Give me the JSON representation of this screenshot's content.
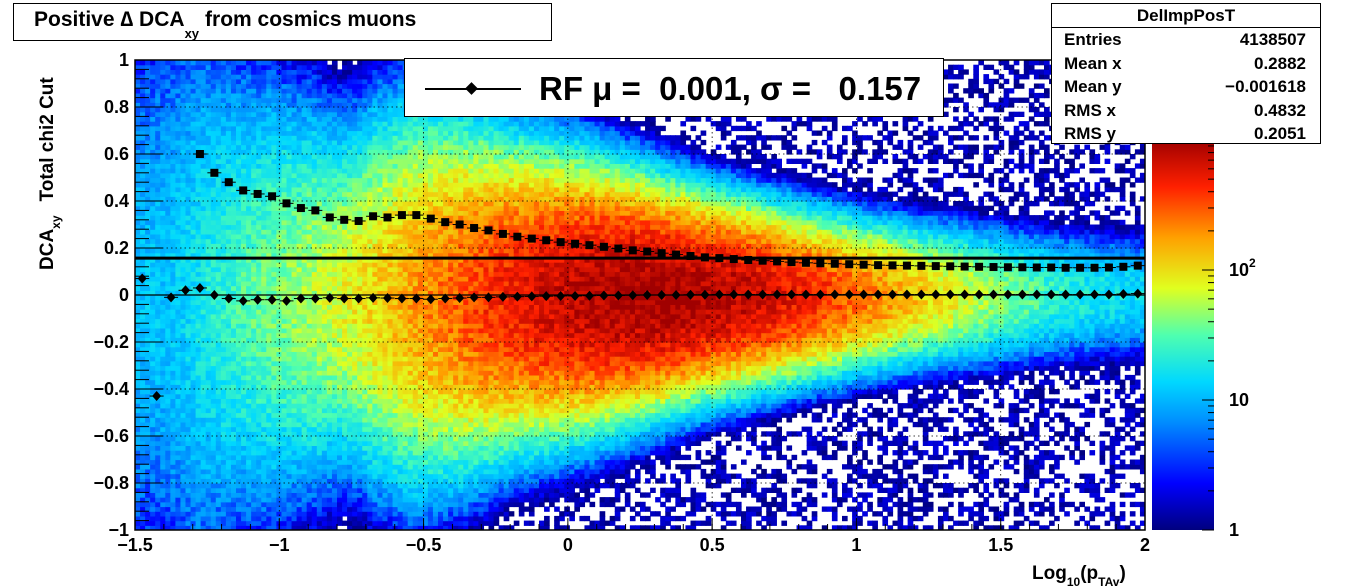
{
  "title": {
    "prefix": "Positive ∆ DCA",
    "sub": "xy",
    "suffix": "from cosmics muons"
  },
  "stats_box": {
    "name": "DelImpPosT",
    "rows": [
      {
        "key": "Entries",
        "value": "4138507"
      },
      {
        "key": "Mean x",
        "value": "0.2882"
      },
      {
        "key": "Mean y",
        "value": "−0.001618"
      },
      {
        "key": "RMS x",
        "value": "0.4832"
      },
      {
        "key": "RMS y",
        "value": "0.2051"
      }
    ]
  },
  "legend": {
    "text": "RF μ =  0.001, σ =   0.157"
  },
  "colors": {
    "palette": [
      "#00007f",
      "#0000ff",
      "#0090ff",
      "#00d8ff",
      "#4fffaf",
      "#e0ff1f",
      "#ffa000",
      "#ff2000",
      "#a00000"
    ]
  },
  "chart_data": {
    "type": "heatmap",
    "xlabel": "Log10(pTAv)",
    "xlabel_parts": {
      "base": "Log",
      "sub1": "10",
      "mid": "(p",
      "sub2": "TAv",
      "end": ")"
    },
    "ylabel": "DCAxy  Total chi2 Cut",
    "ylabel_parts": {
      "base": "DCA",
      "sub": "xy",
      "rest": "Total chi2 Cut"
    },
    "xlim": [
      -1.5,
      2
    ],
    "ylim": [
      -1,
      1
    ],
    "x_ticks": [
      "−1.5",
      "−1",
      "−0.5",
      "0",
      "0.5",
      "1",
      "1.5",
      "2"
    ],
    "x_tick_values": [
      -1.5,
      -1,
      -0.5,
      0,
      0.5,
      1,
      1.5,
      2
    ],
    "y_ticks": [
      "−1",
      "−0.8",
      "−0.6",
      "−0.4",
      "−0.2",
      "0",
      "0.2",
      "0.4",
      "0.6",
      "0.8",
      "1"
    ],
    "y_tick_values": [
      -1,
      -0.8,
      -0.6,
      -0.4,
      -0.2,
      0,
      0.2,
      0.4,
      0.6,
      0.8,
      1
    ],
    "z_scale": "log",
    "z_ticks": [
      "1",
      "10",
      "10^2"
    ],
    "z_tick_values": [
      1,
      10,
      100
    ],
    "zlim": [
      1,
      1000
    ],
    "grid": true,
    "reference_line_y": 0.157,
    "series": [
      {
        "name": "mean",
        "marker": "diamond",
        "x": [
          -1.475,
          -1.425,
          -1.375,
          -1.325,
          -1.275,
          -1.225,
          -1.175,
          -1.125,
          -1.075,
          -1.025,
          -0.975,
          -0.925,
          -0.875,
          -0.825,
          -0.775,
          -0.725,
          -0.675,
          -0.625,
          -0.575,
          -0.525,
          -0.475,
          -0.425,
          -0.375,
          -0.325,
          -0.275,
          -0.225,
          -0.175,
          -0.125,
          -0.075,
          -0.025,
          0.025,
          0.075,
          0.125,
          0.175,
          0.225,
          0.275,
          0.325,
          0.375,
          0.425,
          0.475,
          0.525,
          0.575,
          0.625,
          0.675,
          0.725,
          0.775,
          0.825,
          0.875,
          0.925,
          0.975,
          1.025,
          1.075,
          1.125,
          1.175,
          1.225,
          1.275,
          1.325,
          1.375,
          1.425,
          1.475,
          1.525,
          1.575,
          1.625,
          1.675,
          1.725,
          1.775,
          1.825,
          1.875,
          1.925,
          1.975
        ],
        "y": [
          0.07,
          -0.43,
          -0.01,
          0.02,
          0.03,
          0.0,
          -0.015,
          -0.025,
          -0.02,
          -0.02,
          -0.025,
          -0.015,
          -0.015,
          -0.012,
          -0.015,
          -0.015,
          -0.012,
          -0.013,
          -0.015,
          -0.015,
          -0.018,
          -0.015,
          -0.013,
          -0.01,
          -0.01,
          -0.008,
          -0.007,
          -0.006,
          -0.005,
          -0.004,
          -0.004,
          -0.003,
          -0.002,
          -0.002,
          -0.001,
          0.0,
          0.0,
          0.0,
          0.001,
          0.001,
          0.002,
          0.002,
          0.002,
          0.002,
          0.002,
          0.002,
          0.002,
          0.002,
          0.002,
          0.002,
          0.002,
          0.002,
          0.002,
          0.002,
          0.002,
          0.002,
          0.002,
          0.002,
          0.002,
          0.002,
          0.002,
          0.002,
          0.002,
          0.002,
          0.002,
          0.002,
          0.002,
          0.002,
          0.004,
          0.006
        ]
      },
      {
        "name": "rms",
        "marker": "square",
        "x": [
          -1.275,
          -1.225,
          -1.175,
          -1.125,
          -1.075,
          -1.025,
          -0.975,
          -0.925,
          -0.875,
          -0.825,
          -0.775,
          -0.725,
          -0.675,
          -0.625,
          -0.575,
          -0.525,
          -0.475,
          -0.425,
          -0.375,
          -0.325,
          -0.275,
          -0.225,
          -0.175,
          -0.125,
          -0.075,
          -0.025,
          0.025,
          0.075,
          0.125,
          0.175,
          0.225,
          0.275,
          0.325,
          0.375,
          0.425,
          0.475,
          0.525,
          0.575,
          0.625,
          0.675,
          0.725,
          0.775,
          0.825,
          0.875,
          0.925,
          0.975,
          1.025,
          1.075,
          1.125,
          1.175,
          1.225,
          1.275,
          1.325,
          1.375,
          1.425,
          1.475,
          1.525,
          1.575,
          1.625,
          1.675,
          1.725,
          1.775,
          1.825,
          1.875,
          1.925,
          1.975
        ],
        "y": [
          0.6,
          0.52,
          0.48,
          0.445,
          0.43,
          0.42,
          0.39,
          0.37,
          0.36,
          0.33,
          0.32,
          0.315,
          0.335,
          0.33,
          0.34,
          0.34,
          0.325,
          0.31,
          0.3,
          0.285,
          0.275,
          0.26,
          0.248,
          0.24,
          0.233,
          0.225,
          0.218,
          0.212,
          0.205,
          0.198,
          0.19,
          0.185,
          0.178,
          0.172,
          0.166,
          0.16,
          0.157,
          0.153,
          0.149,
          0.146,
          0.143,
          0.14,
          0.137,
          0.135,
          0.133,
          0.131,
          0.129,
          0.127,
          0.126,
          0.125,
          0.124,
          0.123,
          0.122,
          0.121,
          0.12,
          0.119,
          0.118,
          0.118,
          0.117,
          0.117,
          0.116,
          0.116,
          0.116,
          0.117,
          0.12,
          0.125
        ]
      }
    ]
  }
}
